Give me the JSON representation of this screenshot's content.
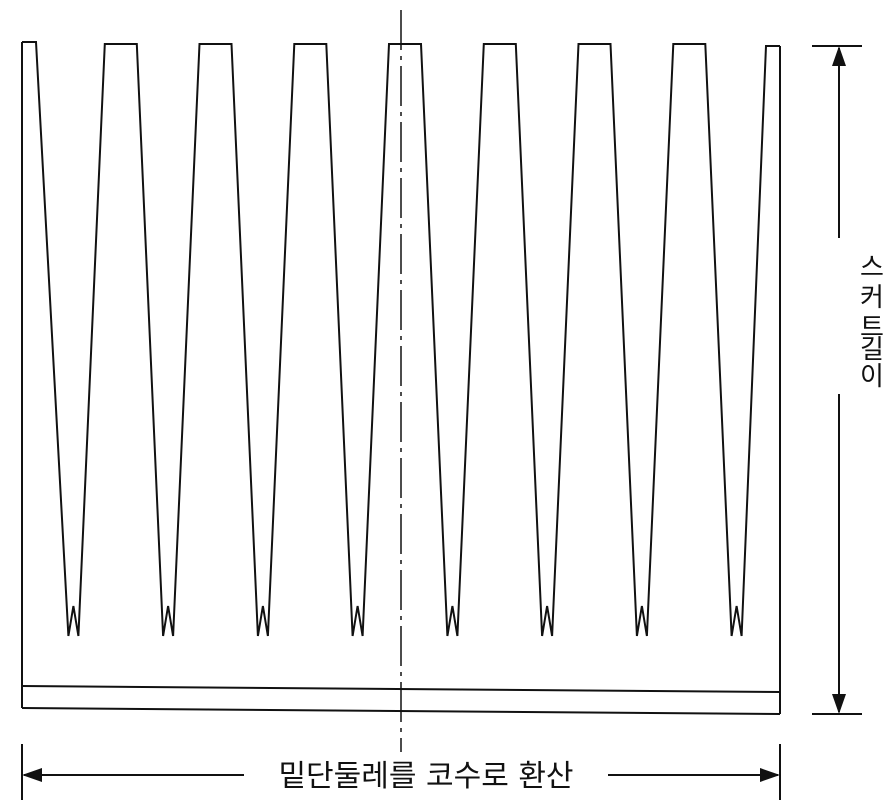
{
  "diagram": {
    "labels": {
      "width_label": "밑단둘레를 코수로 환산",
      "length_label_chars": [
        "스",
        "커",
        "트",
        "길",
        "이"
      ]
    },
    "darts": {
      "count": 8
    },
    "colors": {
      "ink": "#111111",
      "background": "#ffffff"
    }
  }
}
